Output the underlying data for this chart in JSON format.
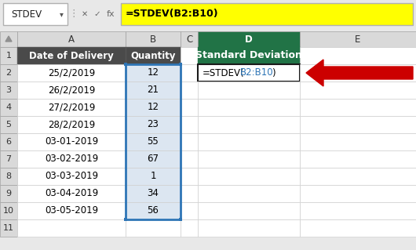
{
  "formula_bar_name": "STDEV",
  "formula_bar_formula": "=STDEV(B2:B10)",
  "dates": [
    "25/2/2019",
    "26/2/2019",
    "27/2/2019",
    "28/2/2019",
    "03-01-2019",
    "03-02-2019",
    "03-03-2019",
    "03-04-2019",
    "03-05-2019"
  ],
  "quantities": [
    "12",
    "21",
    "12",
    "23",
    "55",
    "67",
    "1",
    "34",
    "56"
  ],
  "header_A": "Date of Delivery",
  "header_B": "Quantity",
  "header_D": "Standard Deviation",
  "page_bg": "#e8e8e8",
  "formula_bar_bg": "#e8e8e8",
  "namebox_bg": "#ffffff",
  "formula_bg_yellow": "#ffff00",
  "col_header_bg": "#d9d9d9",
  "row_header_bg": "#d9d9d9",
  "dark_header_bg": "#4a4a4a",
  "dark_header_fg": "#ffffff",
  "green_header_bg": "#217346",
  "green_header_fg": "#ffffff",
  "data_cell_bg": "#ffffff",
  "qty_cell_bg": "#dce6f1",
  "formula_cell_bg": "#ffffff",
  "cell_border": "#d0d0d0",
  "dark_border": "#555555",
  "blue_border": "#2e75b6",
  "arrow_color": "#cc0000",
  "formula_black": "#000000",
  "formula_blue": "#2e75b6"
}
